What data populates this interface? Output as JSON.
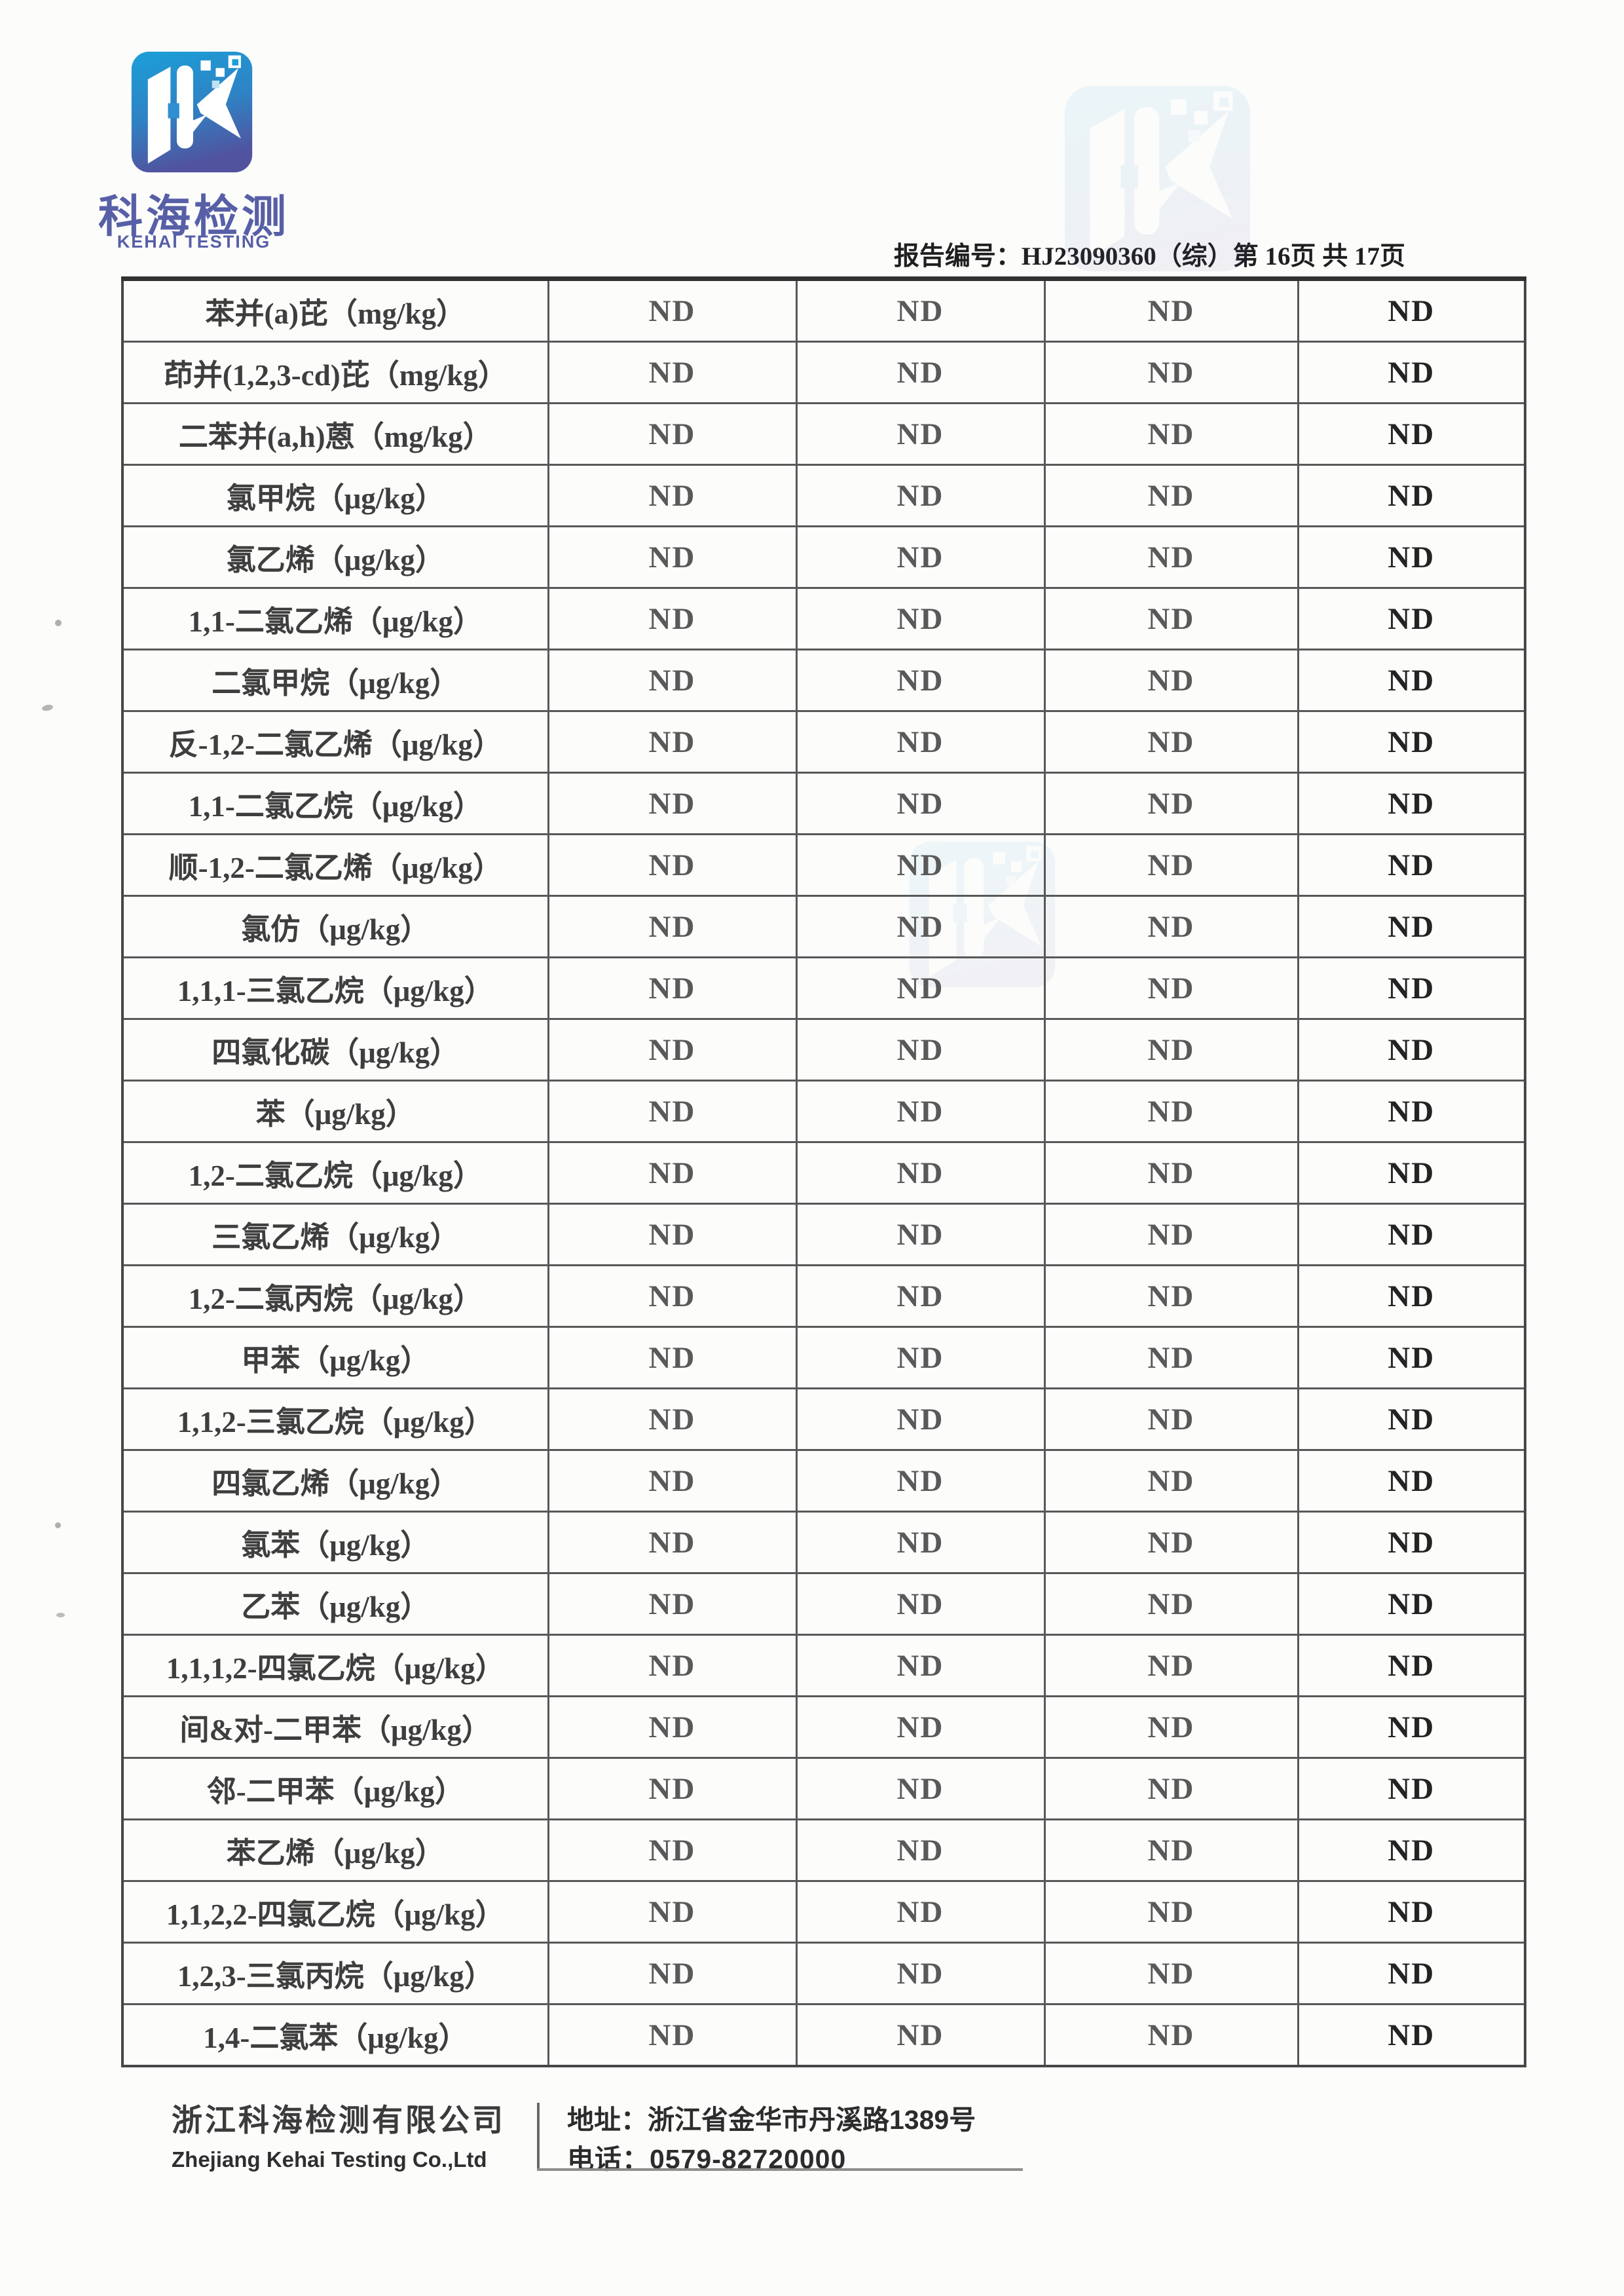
{
  "logo": {
    "brand_cn": "科海检测",
    "brand_en": "KEHAI TESTING"
  },
  "header": {
    "report_line": "报告编号：HJ23090360（综）第 16页 共 17页"
  },
  "table": {
    "rows": [
      {
        "name": "苯并(a)芘（mg/kg）",
        "values": [
          "ND",
          "ND",
          "ND",
          "ND"
        ]
      },
      {
        "name": "茚并(1,2,3-cd)芘（mg/kg）",
        "values": [
          "ND",
          "ND",
          "ND",
          "ND"
        ]
      },
      {
        "name": "二苯并(a,h)蒽（mg/kg）",
        "values": [
          "ND",
          "ND",
          "ND",
          "ND"
        ]
      },
      {
        "name": "氯甲烷（μg/kg）",
        "values": [
          "ND",
          "ND",
          "ND",
          "ND"
        ]
      },
      {
        "name": "氯乙烯（μg/kg）",
        "values": [
          "ND",
          "ND",
          "ND",
          "ND"
        ]
      },
      {
        "name": "1,1-二氯乙烯（μg/kg）",
        "values": [
          "ND",
          "ND",
          "ND",
          "ND"
        ]
      },
      {
        "name": "二氯甲烷（μg/kg）",
        "values": [
          "ND",
          "ND",
          "ND",
          "ND"
        ]
      },
      {
        "name": "反-1,2-二氯乙烯（μg/kg）",
        "values": [
          "ND",
          "ND",
          "ND",
          "ND"
        ]
      },
      {
        "name": "1,1-二氯乙烷（μg/kg）",
        "values": [
          "ND",
          "ND",
          "ND",
          "ND"
        ]
      },
      {
        "name": "顺-1,2-二氯乙烯（μg/kg）",
        "values": [
          "ND",
          "ND",
          "ND",
          "ND"
        ]
      },
      {
        "name": "氯仿（μg/kg）",
        "values": [
          "ND",
          "ND",
          "ND",
          "ND"
        ]
      },
      {
        "name": "1,1,1-三氯乙烷（μg/kg）",
        "values": [
          "ND",
          "ND",
          "ND",
          "ND"
        ]
      },
      {
        "name": "四氯化碳（μg/kg）",
        "values": [
          "ND",
          "ND",
          "ND",
          "ND"
        ]
      },
      {
        "name": "苯（μg/kg）",
        "values": [
          "ND",
          "ND",
          "ND",
          "ND"
        ]
      },
      {
        "name": "1,2-二氯乙烷（μg/kg）",
        "values": [
          "ND",
          "ND",
          "ND",
          "ND"
        ]
      },
      {
        "name": "三氯乙烯（μg/kg）",
        "values": [
          "ND",
          "ND",
          "ND",
          "ND"
        ]
      },
      {
        "name": "1,2-二氯丙烷（μg/kg）",
        "values": [
          "ND",
          "ND",
          "ND",
          "ND"
        ]
      },
      {
        "name": "甲苯（μg/kg）",
        "values": [
          "ND",
          "ND",
          "ND",
          "ND"
        ]
      },
      {
        "name": "1,1,2-三氯乙烷（μg/kg）",
        "values": [
          "ND",
          "ND",
          "ND",
          "ND"
        ]
      },
      {
        "name": "四氯乙烯（μg/kg）",
        "values": [
          "ND",
          "ND",
          "ND",
          "ND"
        ]
      },
      {
        "name": "氯苯（μg/kg）",
        "values": [
          "ND",
          "ND",
          "ND",
          "ND"
        ]
      },
      {
        "name": "乙苯（μg/kg）",
        "values": [
          "ND",
          "ND",
          "ND",
          "ND"
        ]
      },
      {
        "name": "1,1,1,2-四氯乙烷（μg/kg）",
        "values": [
          "ND",
          "ND",
          "ND",
          "ND"
        ]
      },
      {
        "name": "间&对-二甲苯（μg/kg）",
        "values": [
          "ND",
          "ND",
          "ND",
          "ND"
        ]
      },
      {
        "name": "邻-二甲苯（μg/kg）",
        "values": [
          "ND",
          "ND",
          "ND",
          "ND"
        ]
      },
      {
        "name": "苯乙烯（μg/kg）",
        "values": [
          "ND",
          "ND",
          "ND",
          "ND"
        ]
      },
      {
        "name": "1,1,2,2-四氯乙烷（μg/kg）",
        "values": [
          "ND",
          "ND",
          "ND",
          "ND"
        ]
      },
      {
        "name": "1,2,3-三氯丙烷（μg/kg）",
        "values": [
          "ND",
          "ND",
          "ND",
          "ND"
        ]
      },
      {
        "name": "1,4-二氯苯（μg/kg）",
        "values": [
          "ND",
          "ND",
          "ND",
          "ND"
        ]
      }
    ]
  },
  "footer": {
    "company_cn": "浙江科海检测有限公司",
    "company_en": "Zhejiang Kehai Testing Co.,Ltd",
    "address": "地址：浙江省金华市丹溪路1389号",
    "phone": "电话：0579-82720000"
  },
  "colors": {
    "brand_blue": "#1b9fd8",
    "brand_purple": "#575fa7",
    "table_line": "#585858",
    "nd_gray": "#595959",
    "nd_dark": "#232323"
  }
}
